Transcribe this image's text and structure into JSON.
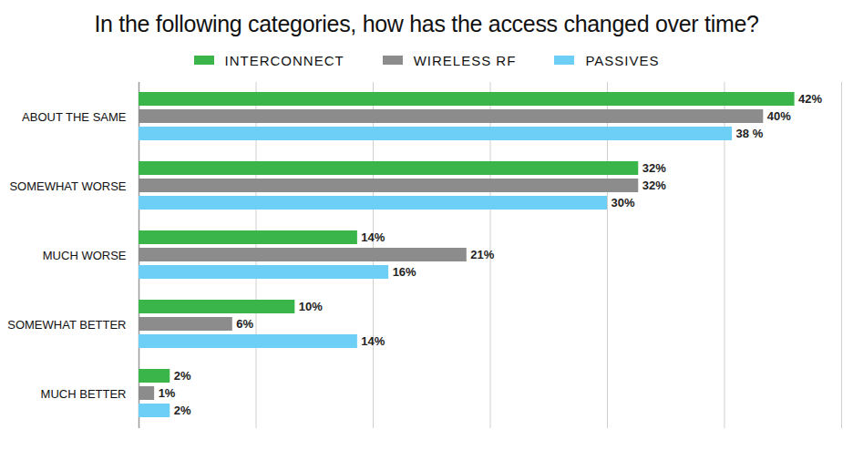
{
  "chart_data": {
    "type": "bar",
    "title": "In the following categories, how has the access changed over time?",
    "orientation": "horizontal",
    "categories": [
      "ABOUT THE SAME",
      "SOMEWHAT WORSE",
      "MUCH WORSE",
      "SOMEWHAT BETTER",
      "MUCH BETTER"
    ],
    "series": [
      {
        "name": "INTERCONNECT",
        "color": "#3ab54a",
        "values": [
          42,
          32,
          14,
          10,
          2
        ],
        "value_labels": [
          "42%",
          "32%",
          "14%",
          "10%",
          "2%"
        ]
      },
      {
        "name": "WIRELESS RF",
        "color": "#8c8c8c",
        "values": [
          40,
          32,
          21,
          6,
          1
        ],
        "value_labels": [
          "40%",
          "32%",
          "21%",
          "6%",
          "1%"
        ]
      },
      {
        "name": "PASSIVES",
        "color": "#6dcff6",
        "values": [
          38,
          30,
          16,
          14,
          2
        ],
        "value_labels": [
          "38 %",
          "30%",
          "16%",
          "14%",
          "2%"
        ]
      }
    ],
    "xlim": [
      0,
      45
    ],
    "xticks": [
      0,
      7.5,
      15,
      22.5,
      30,
      37.5,
      45
    ],
    "grid": true,
    "tick_labels": false,
    "data_labels": true,
    "legend": "top"
  }
}
